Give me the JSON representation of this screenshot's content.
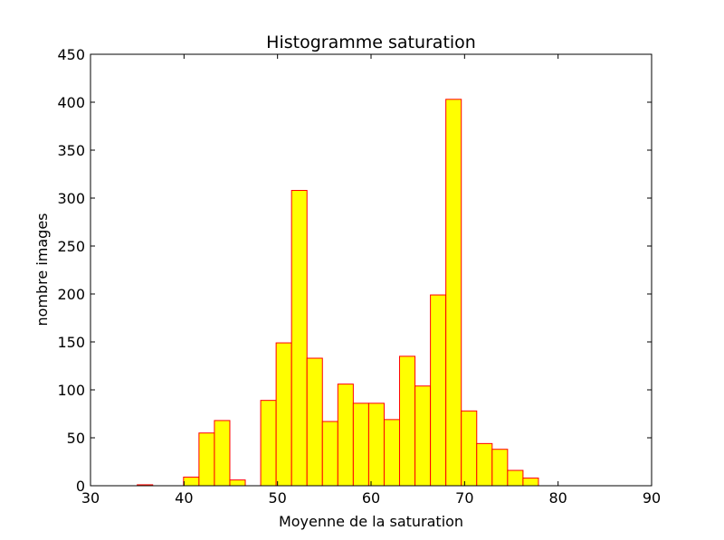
{
  "chart_data": {
    "type": "bar",
    "title": "Histogramme saturation",
    "xlabel": "Moyenne de la saturation",
    "ylabel": "nombre images",
    "xlim": [
      30,
      90
    ],
    "ylim": [
      0,
      450
    ],
    "xticks": [
      30,
      40,
      50,
      60,
      70,
      80,
      90
    ],
    "yticks": [
      0,
      50,
      100,
      150,
      200,
      250,
      300,
      350,
      400,
      450
    ],
    "bin_edges": [
      35.0,
      36.65,
      38.3,
      39.95,
      41.6,
      43.25,
      44.9,
      46.55,
      48.2,
      49.85,
      51.5,
      53.15,
      54.8,
      56.45,
      58.1,
      59.75,
      61.4,
      63.05,
      64.7,
      66.35,
      68.0,
      69.65,
      71.3,
      72.95,
      74.6,
      76.25,
      77.9,
      79.55,
      81.2,
      82.85,
      84.5
    ],
    "values": [
      1,
      0,
      0,
      9,
      55,
      68,
      6,
      0,
      89,
      149,
      308,
      133,
      67,
      106,
      86,
      86,
      69,
      135,
      104,
      199,
      403,
      78,
      44,
      38,
      16,
      8,
      0,
      0,
      0,
      0
    ],
    "bar_fill": "#ffff00",
    "bar_edge": "#ff0000",
    "grid": false
  }
}
